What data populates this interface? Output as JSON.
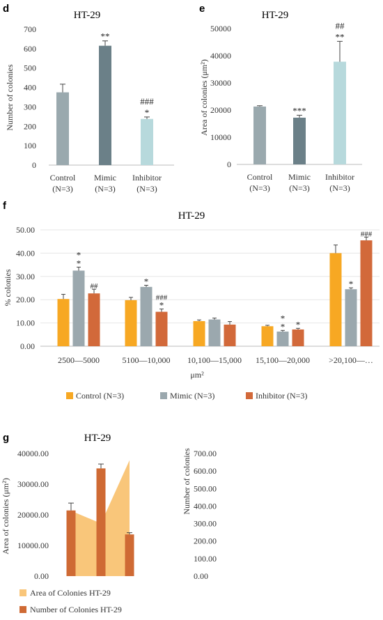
{
  "colors": {
    "control": "#9aa9ae",
    "mimic": "#6b8088",
    "inhibitor": "#b7d9dc",
    "f_control": "#f7a823",
    "f_mimic": "#9ba8ae",
    "f_inhibitor": "#d2693a",
    "g_area": "#f9c67a",
    "g_number": "#cf6a34",
    "error": "#444444"
  },
  "chart_data": [
    {
      "panel": "d",
      "type": "bar",
      "title": "HT-29",
      "ylabel": "Number of colonies",
      "xlabel": "",
      "ylim": [
        0,
        700
      ],
      "yticks": [
        "0",
        "100",
        "200",
        "300",
        "400",
        "500",
        "600",
        "700"
      ],
      "categories": [
        [
          "Control",
          "(N=3)"
        ],
        [
          "Mimic",
          "(N=3)"
        ],
        [
          "Inhibitor",
          "(N=3)"
        ]
      ],
      "values": [
        375,
        615,
        238
      ],
      "errors": [
        42,
        25,
        10
      ],
      "significance": [
        [],
        [
          "**"
        ],
        [
          "*",
          "###"
        ]
      ]
    },
    {
      "panel": "e",
      "type": "bar",
      "title": "HT-29",
      "ylabel": "Area of colonies (μm²)",
      "xlabel": "",
      "ylim": [
        0,
        50000
      ],
      "yticks": [
        "0",
        "10000",
        "20000",
        "30000",
        "40000",
        "50000"
      ],
      "categories": [
        [
          "Control",
          "(N=3)"
        ],
        [
          "Mimic",
          "(N=3)"
        ],
        [
          "Inhibitor",
          "(N=3)"
        ]
      ],
      "values": [
        21300,
        17200,
        37800
      ],
      "errors": [
        300,
        900,
        7500
      ],
      "significance": [
        [],
        [
          "***"
        ],
        [
          "**",
          "##"
        ]
      ]
    },
    {
      "panel": "f",
      "type": "bar",
      "title": "HT-29",
      "ylabel": "% colonies",
      "xlabel": "μm²",
      "ylim": [
        0,
        50
      ],
      "yticks": [
        "0.00",
        "10.00",
        "20.00",
        "30.00",
        "40.00",
        "50.00"
      ],
      "categories": [
        "2500—5000",
        "5100—10,000",
        "10,100—15,000",
        "15,100—20,000",
        ">20,100—…"
      ],
      "series": [
        {
          "name": "Control (N=3)",
          "values": [
            20.3,
            19.8,
            10.8,
            8.6,
            40.0
          ],
          "errors": [
            2.0,
            1.2,
            0.5,
            0.4,
            3.5
          ]
        },
        {
          "name": "Mimic (N=3)",
          "values": [
            32.5,
            25.5,
            11.5,
            6.3,
            24.5
          ],
          "errors": [
            1.5,
            0.7,
            0.6,
            0.5,
            0.6
          ]
        },
        {
          "name": "Inhibitor (N=3)",
          "values": [
            22.7,
            14.8,
            9.3,
            7.2,
            45.5
          ],
          "errors": [
            1.8,
            1.2,
            1.3,
            0.5,
            1.4
          ]
        }
      ],
      "significance": [
        [
          [],
          [
            "*",
            "*"
          ],
          [
            "##"
          ]
        ],
        [
          [],
          [
            "*"
          ],
          [
            "*",
            "###"
          ]
        ],
        [
          [],
          [],
          []
        ],
        [
          [],
          [
            "*",
            "*"
          ],
          [
            "*"
          ]
        ],
        [
          [],
          [
            "*"
          ],
          [
            "###"
          ]
        ]
      ],
      "legend": "bottom"
    },
    {
      "panel": "g",
      "type": "area",
      "title": "HT-29",
      "ylabel": "Area of colonies (μm²)",
      "ylabel_right": "Number of colonies",
      "ylim": [
        0,
        40000
      ],
      "ylim_right": [
        0,
        700
      ],
      "yticks": [
        "0.00",
        "10000.00",
        "20000.00",
        "30000.00",
        "40000.00"
      ],
      "yticks_right": [
        "0.00",
        "100.00",
        "200.00",
        "300.00",
        "400.00",
        "500.00",
        "600.00",
        "700.00"
      ],
      "series": [
        {
          "name": "Area of Colonies HT-29",
          "values": [
            21300,
            17200,
            37800
          ]
        },
        {
          "name": "Number of Colonies HT-29",
          "values": [
            375,
            615,
            238
          ],
          "errors": [
            42,
            25,
            10
          ]
        }
      ],
      "legend": "bottom-left"
    }
  ]
}
